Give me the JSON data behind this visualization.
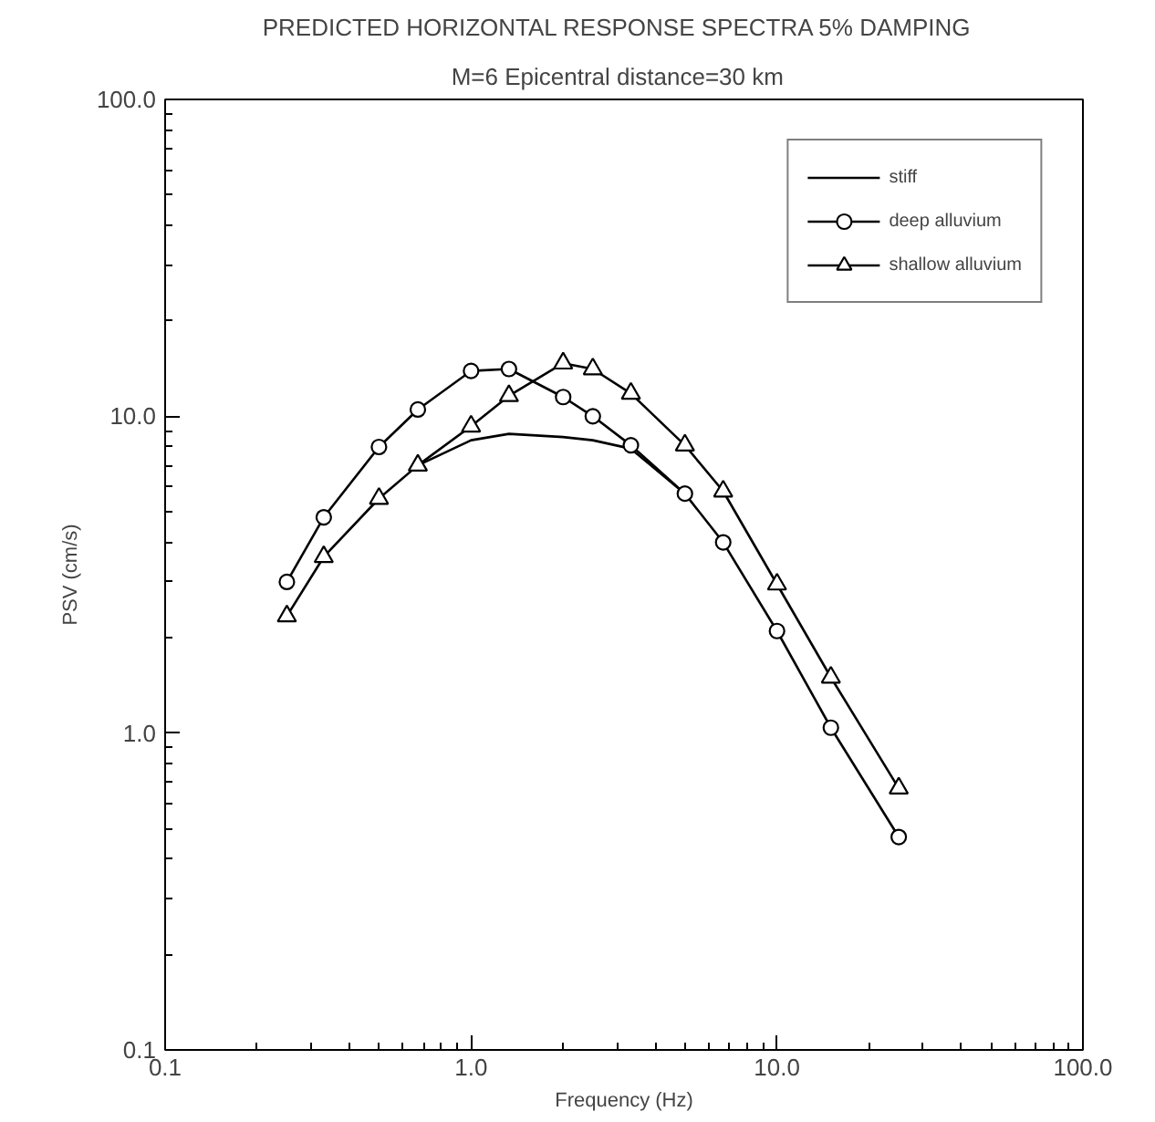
{
  "chart_data": {
    "type": "line",
    "title": "PREDICTED HORIZONTAL RESPONSE SPECTRA   5% DAMPING",
    "subtitle": "M=6   Epicentral distance=30 km",
    "xlabel": "Frequency (Hz)",
    "ylabel": "PSV (cm/s)",
    "x": [
      0.25,
      0.33,
      0.5,
      0.67,
      1.0,
      1.33,
      2.0,
      2.5,
      3.33,
      5.0,
      6.67,
      10.0,
      15.0,
      25.0
    ],
    "series": [
      {
        "name": "stiff",
        "color": "#000000",
        "marker": "none",
        "values": [
          null,
          null,
          null,
          7.0,
          8.4,
          8.8,
          8.6,
          8.4,
          7.9,
          5.7,
          null,
          null,
          null,
          null
        ]
      },
      {
        "name": "deep alluvium",
        "color": "#000000",
        "marker": "circle",
        "values": [
          3.0,
          4.8,
          8.0,
          10.5,
          13.9,
          14.1,
          11.5,
          10.0,
          8.1,
          5.7,
          4.0,
          2.1,
          1.04,
          0.47
        ]
      },
      {
        "name": "shallow alluvium",
        "color": "#000000",
        "marker": "triangle",
        "values": [
          2.34,
          3.6,
          5.5,
          7.0,
          9.3,
          11.6,
          14.7,
          14.1,
          11.8,
          8.1,
          5.8,
          2.95,
          1.5,
          0.67
        ]
      }
    ],
    "log": "xy",
    "xlim": [
      0.1,
      100
    ],
    "ylim": [
      0.1,
      100
    ],
    "xticks": [
      {
        "value": 0.1,
        "label": "0.1"
      },
      {
        "value": 1,
        "label": "1.0"
      },
      {
        "value": 10,
        "label": "10.0"
      },
      {
        "value": 100,
        "label": "100.0"
      }
    ],
    "yticks": [
      {
        "value": 0.1,
        "label": "0.1"
      },
      {
        "value": 1,
        "label": "1.0"
      },
      {
        "value": 10,
        "label": "10.0"
      },
      {
        "value": 100,
        "label": "100.0"
      }
    ],
    "grid": false,
    "legend": "top right",
    "line_style": "solid"
  }
}
